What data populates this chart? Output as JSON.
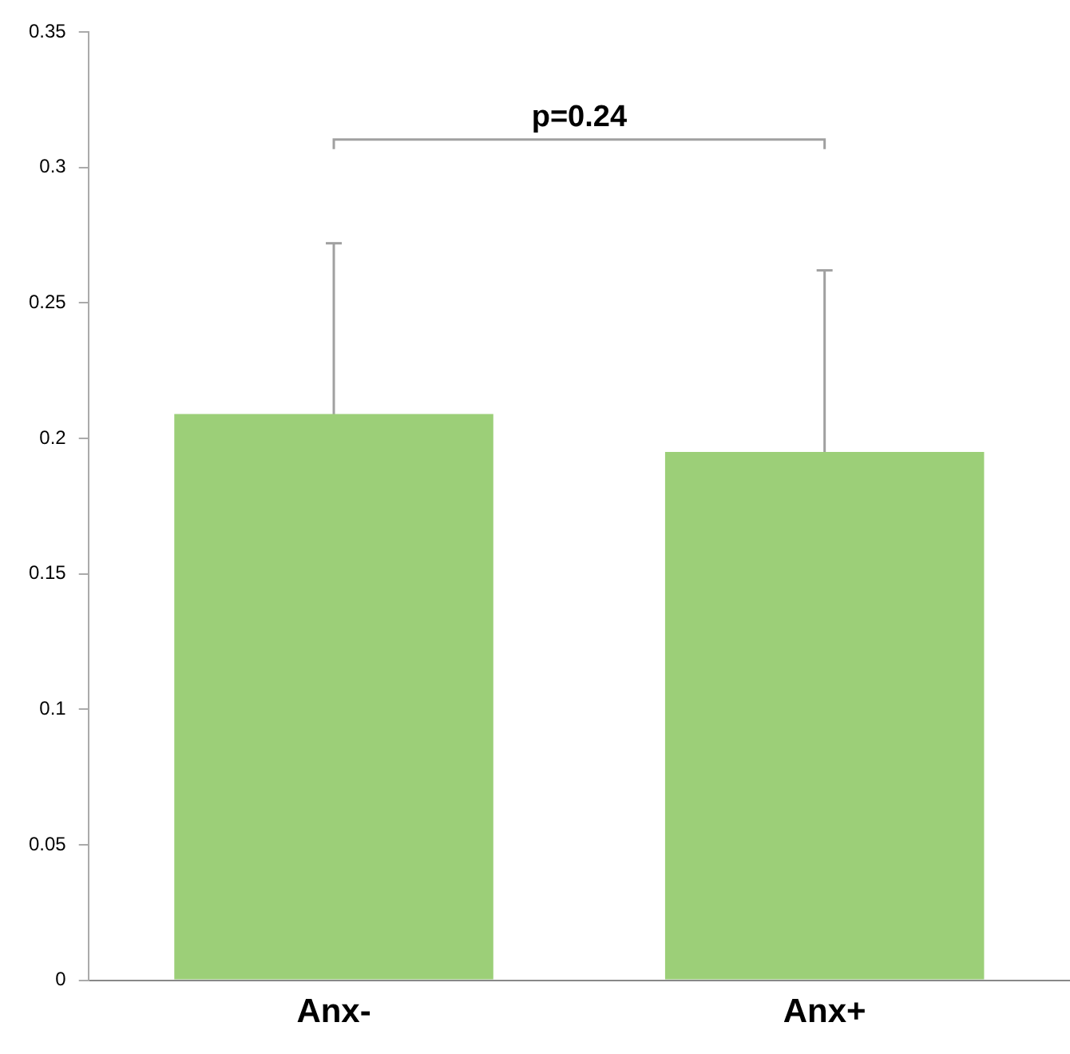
{
  "chart_data": {
    "type": "bar",
    "categories": [
      "Anx-",
      "Anx+"
    ],
    "values": [
      0.209,
      0.195
    ],
    "errors": [
      0.063,
      0.067
    ],
    "color": "#9ccf78",
    "ylim": [
      0,
      0.35
    ],
    "yticks": [
      0,
      0.05,
      0.1,
      0.15,
      0.2,
      0.25,
      0.3,
      0.35
    ],
    "grid": false,
    "legend": false,
    "annotations": [
      "p=0.24"
    ]
  }
}
